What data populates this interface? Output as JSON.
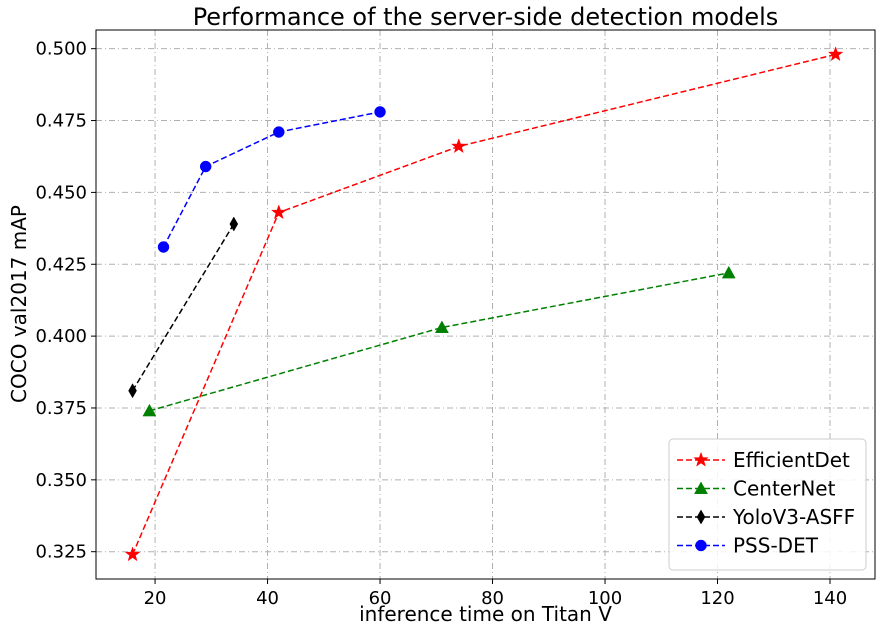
{
  "chart_data": {
    "type": "line",
    "title": "Performance of the server-side detection models",
    "xlabel": "inference time on Titan V",
    "ylabel": "COCO val2017 mAP",
    "xlim": [
      9.5,
      148
    ],
    "ylim": [
      0.3155,
      0.5065
    ],
    "xticks": [
      20,
      40,
      60,
      80,
      100,
      120,
      140
    ],
    "yticks": [
      0.325,
      0.35,
      0.375,
      0.4,
      0.425,
      0.45,
      0.475,
      0.5
    ],
    "ytick_labels": [
      "0.325",
      "0.350",
      "0.375",
      "0.400",
      "0.425",
      "0.450",
      "0.475",
      "0.500"
    ],
    "grid": true,
    "legend_position": "bottom-right",
    "series": [
      {
        "name": "EfficientDet",
        "color": "#ff0000",
        "marker": "star",
        "x": [
          16,
          42,
          74,
          141
        ],
        "y": [
          0.324,
          0.443,
          0.466,
          0.498
        ]
      },
      {
        "name": "CenterNet",
        "color": "#008000",
        "marker": "triangle",
        "x": [
          19,
          71,
          122
        ],
        "y": [
          0.374,
          0.403,
          0.422
        ]
      },
      {
        "name": "YoloV3-ASFF",
        "color": "#000000",
        "marker": "thin-diamond",
        "x": [
          16,
          34
        ],
        "y": [
          0.381,
          0.439
        ]
      },
      {
        "name": "PSS-DET",
        "color": "#0000ff",
        "marker": "circle",
        "x": [
          21.5,
          29,
          42,
          60
        ],
        "y": [
          0.431,
          0.459,
          0.471,
          0.478
        ]
      }
    ]
  }
}
